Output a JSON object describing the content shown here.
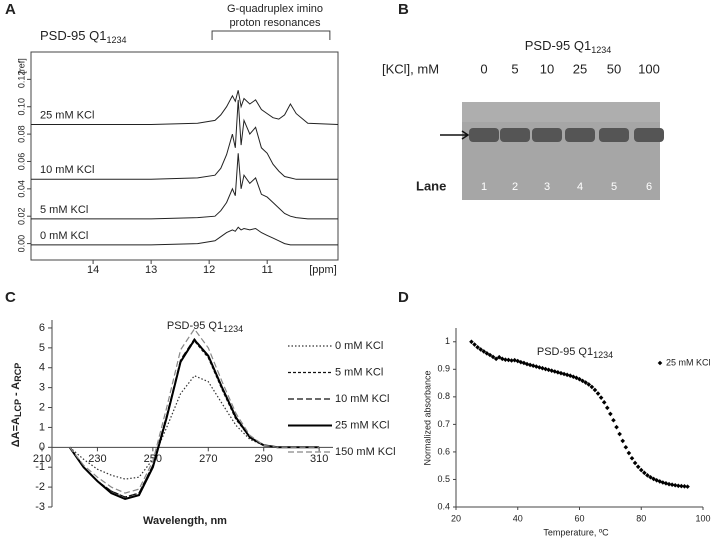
{
  "chart_data": [
    {
      "type": "nmr",
      "panel_label": "A",
      "title": "PSD-95 Q1",
      "title_subscript": "1234",
      "annotation": [
        "G-quadruplex imino",
        "proton resonances"
      ],
      "xlabel": "[ppm]",
      "ylabel": "[ref]",
      "xlim": [
        15.07,
        9.78
      ],
      "xticks": [
        14,
        13,
        12,
        11
      ],
      "ylim": [
        -0.012,
        0.14
      ],
      "yticks": [
        {
          "value": 0,
          "label": "0.00"
        },
        {
          "value": 0.02,
          "label": "0.02"
        },
        {
          "value": 0.04,
          "label": "0.04"
        },
        {
          "value": 0.06,
          "label": "0.06"
        },
        {
          "value": 0.08,
          "label": "0.08"
        },
        {
          "value": 0.1,
          "label": "0.10"
        },
        {
          "value": 0.12,
          "label": "0.12"
        }
      ],
      "x": [
        15.07,
        13,
        12.2,
        11.9,
        11.8,
        11.7,
        11.6,
        11.55,
        11.5,
        11.45,
        11.4,
        11.3,
        11.2,
        11.1,
        11.0,
        10.9,
        10.8,
        10.7,
        10.6,
        10.5,
        10.3,
        9.78
      ],
      "series": [
        {
          "name": "25 mM KCl",
          "color": "#222222",
          "values": [
            0.087,
            0.087,
            0.088,
            0.09,
            0.094,
            0.1,
            0.108,
            0.104,
            0.112,
            0.1,
            0.106,
            0.102,
            0.105,
            0.098,
            0.095,
            0.092,
            0.091,
            0.094,
            0.102,
            0.095,
            0.088,
            0.087
          ]
        },
        {
          "name": "10 mM KCl",
          "color": "#222222",
          "values": [
            0.047,
            0.047,
            0.048,
            0.05,
            0.055,
            0.065,
            0.08,
            0.07,
            0.105,
            0.072,
            0.09,
            0.08,
            0.085,
            0.07,
            0.066,
            0.058,
            0.053,
            0.049,
            0.048,
            0.047,
            0.047,
            0.047
          ]
        },
        {
          "name": "5 mM KCl",
          "color": "#222222",
          "values": [
            0.018,
            0.018,
            0.019,
            0.02,
            0.024,
            0.03,
            0.04,
            0.035,
            0.066,
            0.04,
            0.05,
            0.044,
            0.048,
            0.036,
            0.034,
            0.03,
            0.026,
            0.022,
            0.02,
            0.019,
            0.018,
            0.018
          ]
        },
        {
          "name": "0 mM KCl",
          "color": "#222222",
          "values": [
            -0.001,
            -0.001,
            0,
            0.002,
            0.005,
            0.008,
            0.01,
            0.009,
            0.012,
            0.01,
            0.011,
            0.01,
            0.011,
            0.008,
            0.006,
            0.004,
            0.002,
            0,
            -0.001,
            -0.001,
            -0.001,
            -0.001
          ]
        }
      ]
    },
    {
      "type": "gel",
      "panel_label": "B",
      "title": "PSD-95 Q1",
      "title_subscript": "1234",
      "row_label": "[KCl], mM",
      "categories": [
        "0",
        "5",
        "10",
        "25",
        "50",
        "100"
      ],
      "lane_label": "Lane",
      "lanes": [
        "1",
        "2",
        "3",
        "4",
        "5",
        "6"
      ]
    },
    {
      "type": "line",
      "panel_label": "C",
      "title": "PSD-95 Q1",
      "title_subscript": "1234",
      "xlabel": "Wavelength, nm",
      "ylabel": [
        "ΔA=A",
        "LCP",
        " - A",
        "RCP"
      ],
      "xlim": [
        210,
        315
      ],
      "xticks": [
        210,
        230,
        250,
        270,
        290,
        310
      ],
      "ylim": [
        -3,
        6.4
      ],
      "yticks": [
        -3,
        -2,
        -1,
        0,
        1,
        2,
        3,
        4,
        5,
        6
      ],
      "x": [
        220,
        225,
        230,
        235,
        240,
        245,
        250,
        255,
        260,
        265,
        270,
        275,
        280,
        285,
        290,
        295,
        300,
        305,
        310
      ],
      "series": [
        {
          "name": "0 mM KCl",
          "color": "#333333",
          "dash": "dotted",
          "values": [
            0,
            -0.6,
            -1.1,
            -1.4,
            -1.6,
            -1.5,
            -0.6,
            1.0,
            2.7,
            3.6,
            3.3,
            2.2,
            1.1,
            0.4,
            0.1,
            0,
            0,
            0,
            0
          ]
        },
        {
          "name": "5 mM KCl",
          "color": "#111111",
          "dash": "short-dash",
          "values": [
            0,
            -1,
            -1.7,
            -2.2,
            -2.5,
            -2.3,
            -0.9,
            1.6,
            4.3,
            5.35,
            4.5,
            2.9,
            1.4,
            0.5,
            0.1,
            0,
            0,
            0,
            0
          ]
        },
        {
          "name": "10 mM KCl",
          "color": "#111111",
          "dash": "dash",
          "values": [
            0,
            -1,
            -1.7,
            -2.2,
            -2.5,
            -2.3,
            -0.9,
            1.6,
            4.4,
            5.45,
            4.6,
            3.0,
            1.5,
            0.5,
            0.1,
            0,
            0,
            0,
            0
          ]
        },
        {
          "name": "25 mM KCl",
          "color": "#000000",
          "dash": "solid",
          "values": [
            0,
            -1.0,
            -1.7,
            -2.3,
            -2.6,
            -2.4,
            -1.0,
            1.5,
            4.3,
            5.4,
            4.6,
            3.0,
            1.5,
            0.5,
            0.1,
            0,
            0,
            0,
            0
          ]
        },
        {
          "name": "150 mM KCl",
          "color": "#888888",
          "dash": "dash",
          "values": [
            0,
            -0.9,
            -1.5,
            -2.0,
            -2.3,
            -2.1,
            -0.7,
            2.0,
            4.9,
            5.95,
            5.0,
            3.3,
            1.7,
            0.6,
            0.1,
            0,
            0,
            0,
            0
          ]
        }
      ]
    },
    {
      "type": "scatter",
      "panel_label": "D",
      "title": "PSD-95 Q1",
      "title_subscript": "1234",
      "xlabel": "Temperature, ºC",
      "ylabel": "Normalized absorbance",
      "xlim": [
        20,
        100
      ],
      "xticks": [
        20,
        40,
        60,
        80,
        100
      ],
      "ylim": [
        0.4,
        1.05
      ],
      "yticks": [
        0.4,
        0.5,
        0.6,
        0.7,
        0.8,
        0.9,
        1
      ],
      "x": [
        25,
        26,
        27,
        28,
        29,
        30,
        31,
        32,
        33,
        34,
        35,
        36,
        37,
        38,
        39,
        40,
        41,
        42,
        43,
        44,
        45,
        46,
        47,
        48,
        49,
        50,
        51,
        52,
        53,
        54,
        55,
        56,
        57,
        58,
        59,
        60,
        61,
        62,
        63,
        64,
        65,
        66,
        67,
        68,
        69,
        70,
        71,
        72,
        73,
        74,
        75,
        76,
        77,
        78,
        79,
        80,
        81,
        82,
        83,
        84,
        85,
        86,
        87,
        88,
        89,
        90,
        91,
        92,
        93,
        94,
        95
      ],
      "series": [
        {
          "name": "25 mM KCl",
          "color": "#000000",
          "values": [
            1.0,
            0.99,
            0.98,
            0.972,
            0.965,
            0.958,
            0.952,
            0.945,
            0.938,
            0.944,
            0.938,
            0.935,
            0.934,
            0.932,
            0.933,
            0.93,
            0.926,
            0.923,
            0.919,
            0.916,
            0.913,
            0.91,
            0.907,
            0.904,
            0.901,
            0.898,
            0.895,
            0.892,
            0.889,
            0.886,
            0.883,
            0.88,
            0.877,
            0.873,
            0.869,
            0.864,
            0.858,
            0.852,
            0.845,
            0.836,
            0.825,
            0.812,
            0.797,
            0.78,
            0.76,
            0.738,
            0.715,
            0.69,
            0.665,
            0.64,
            0.617,
            0.596,
            0.577,
            0.56,
            0.546,
            0.534,
            0.524,
            0.515,
            0.508,
            0.502,
            0.497,
            0.493,
            0.489,
            0.486,
            0.483,
            0.481,
            0.479,
            0.477,
            0.476,
            0.475,
            0.474
          ]
        }
      ]
    }
  ]
}
